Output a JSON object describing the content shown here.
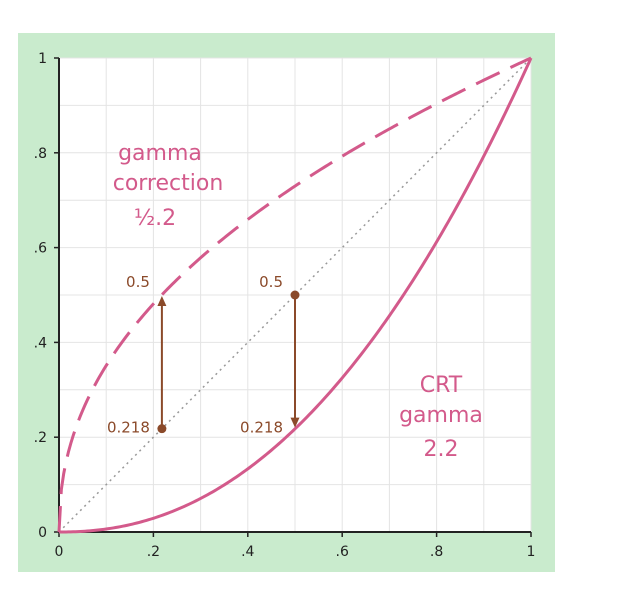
{
  "chart_data": {
    "type": "line",
    "title": "",
    "xlabel": "",
    "ylabel": "",
    "xlim": [
      0,
      1
    ],
    "ylim": [
      0,
      1
    ],
    "x_ticks": [
      "0",
      ".2",
      ".4",
      ".6",
      ".8",
      "1"
    ],
    "y_ticks": [
      "0",
      ".2",
      ".4",
      ".6",
      ".8",
      "1"
    ],
    "grid": true,
    "legend": "none",
    "series": [
      {
        "style": "dashed",
        "color": "#d35a8b",
        "exponent": 0.4545,
        "x": [
          0,
          0.05,
          0.1,
          0.15,
          0.218,
          0.3,
          0.4,
          0.5,
          0.6,
          0.7,
          0.8,
          0.9,
          1
        ],
        "y": [
          0,
          0.256,
          0.351,
          0.422,
          0.5,
          0.579,
          0.659,
          0.73,
          0.793,
          0.85,
          0.904,
          0.953,
          1
        ]
      },
      {
        "style": "solid",
        "color": "#d35a8b",
        "exponent": 2.2,
        "x": [
          0,
          0.1,
          0.2,
          0.3,
          0.4,
          0.5,
          0.6,
          0.7,
          0.8,
          0.9,
          1
        ],
        "y": [
          0,
          0.006,
          0.029,
          0.071,
          0.133,
          0.218,
          0.325,
          0.456,
          0.612,
          0.793,
          1
        ]
      },
      {
        "style": "dotted",
        "color": "#999999",
        "exponent": 1,
        "x": [
          0,
          1
        ],
        "y": [
          0,
          1
        ]
      }
    ],
    "points": [
      {
        "x": 0.218,
        "y": 0.218,
        "label": "0.218"
      },
      {
        "x": 0.218,
        "y": 0.5,
        "label": "0.5"
      },
      {
        "x": 0.5,
        "y": 0.5,
        "label": "0.5"
      },
      {
        "x": 0.5,
        "y": 0.218,
        "label": "0.218"
      }
    ],
    "arrows": [
      {
        "x": 0.218,
        "from": 0.218,
        "to": 0.5
      },
      {
        "x": 0.5,
        "from": 0.5,
        "to": 0.218
      }
    ],
    "annotations": {
      "gamma_correction": [
        "gamma",
        "correction",
        "½.2"
      ],
      "crt_gamma": [
        "CRT",
        "gamma",
        "2.2"
      ]
    },
    "colors": {
      "background": "#c9ebcd",
      "plot_area": "#ffffff",
      "grid": "#e4e4e4",
      "curve": "#d35a8b",
      "arrow": "#8b4a2a",
      "label": "#8b4a2a",
      "axis_text": "#222222"
    }
  }
}
